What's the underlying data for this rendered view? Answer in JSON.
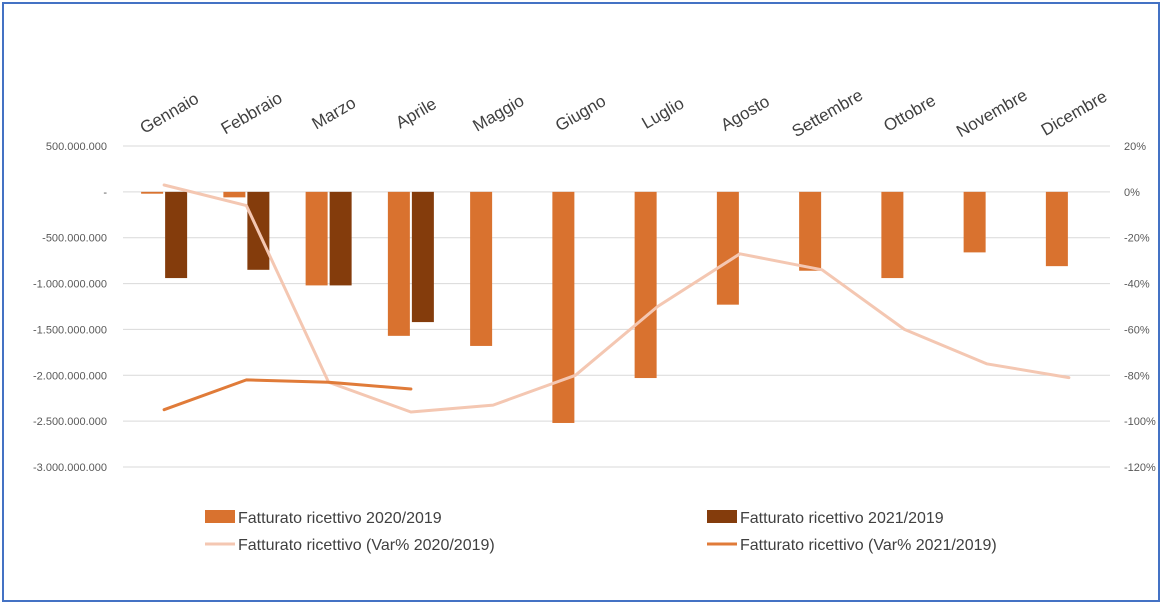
{
  "chart_data": {
    "type": "bar",
    "categories": [
      "Gennaio",
      "Febbraio",
      "Marzo",
      "Aprile",
      "Maggio",
      "Giugno",
      "Luglio",
      "Agosto",
      "Settembre",
      "Ottobre",
      "Novembre",
      "Dicembre"
    ],
    "series": [
      {
        "name": "Fatturato ricettivo 2020/2019",
        "kind": "bar",
        "axis": "left",
        "color": "#d9722f",
        "values": [
          -20000000,
          -60000000,
          -1020000000,
          -1570000000,
          -1680000000,
          -2520000000,
          -2030000000,
          -1230000000,
          -860000000,
          -940000000,
          -660000000,
          -810000000
        ]
      },
      {
        "name": "Fatturato ricettivo 2021/2019",
        "kind": "bar",
        "axis": "left",
        "color": "#843c0c",
        "values": [
          -940000000,
          -850000000,
          -1020000000,
          -1420000000,
          null,
          null,
          null,
          null,
          null,
          null,
          null,
          null
        ]
      },
      {
        "name": "Fatturato ricettivo (Var% 2020/2019)",
        "kind": "line",
        "axis": "right",
        "color": "#f4c7b2",
        "values": [
          3,
          -6,
          -83,
          -96,
          -93,
          -80,
          -50,
          -27,
          -34,
          -60,
          -75,
          -81
        ]
      },
      {
        "name": "Fatturato ricettivo (Var% 2021/2019)",
        "kind": "line",
        "axis": "right",
        "color": "#e07b39",
        "values": [
          -95,
          -82,
          -83,
          -86,
          null,
          null,
          null,
          null,
          null,
          null,
          null,
          null
        ]
      }
    ],
    "left_axis": {
      "min": -3000000000,
      "max": 500000000,
      "step": 500000000,
      "tick_labels": [
        "500.000.000",
        "-",
        "-500.000.000",
        "-1.000.000.000",
        "-1.500.000.000",
        "-2.000.000.000",
        "-2.500.000.000",
        "-3.000.000.000"
      ]
    },
    "right_axis": {
      "min": -120,
      "max": 20,
      "step": 20,
      "tick_labels": [
        "20%",
        "0%",
        "-20%",
        "-40%",
        "-60%",
        "-80%",
        "-100%",
        "-120%"
      ]
    },
    "grid": true,
    "legend_position": "bottom",
    "title": "",
    "xlabel": "",
    "ylabel": ""
  },
  "legend": [
    {
      "label": "Fatturato ricettivo 2020/2019",
      "swatch": "bar",
      "color": "#d9722f"
    },
    {
      "label": "Fatturato ricettivo 2021/2019",
      "swatch": "bar",
      "color": "#843c0c"
    },
    {
      "label": "Fatturato ricettivo (Var% 2020/2019)",
      "swatch": "line",
      "color": "#f4c7b2"
    },
    {
      "label": "Fatturato ricettivo (Var% 2021/2019)",
      "swatch": "line",
      "color": "#e07b39"
    }
  ]
}
